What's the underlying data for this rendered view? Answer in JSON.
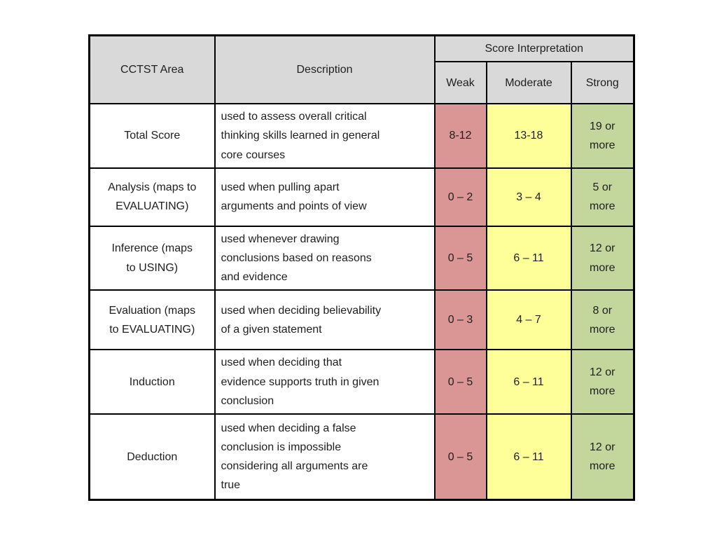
{
  "table": {
    "colors": {
      "header_bg": "#d9d9d9",
      "weak_bg": "#d99694",
      "moderate_bg": "#ffff99",
      "strong_bg": "#c3d69b",
      "border": "#000000",
      "text": "#1f1f1f"
    },
    "header": {
      "area_label": "CCTST Area",
      "description_label": "Description",
      "score_interpretation_label": "Score Interpretation",
      "levels": [
        "Weak",
        "Moderate",
        "Strong"
      ]
    },
    "rows": [
      {
        "area": "Total Score",
        "description": "used to assess overall critical\nthinking skills learned in general\ncore courses",
        "weak": "8-12",
        "moderate": "13-18",
        "strong": "19 or\nmore"
      },
      {
        "area": "Analysis (maps to\nEVALUATING)",
        "description": "used when pulling apart\narguments and points of view",
        "weak": "0 – 2",
        "moderate": "3 – 4",
        "strong": "5 or\nmore"
      },
      {
        "area": "Inference  (maps\nto USING)",
        "description": "used whenever drawing\nconclusions based on reasons\nand evidence",
        "weak": "0 – 5",
        "moderate": "6 – 11",
        "strong": "12 or\nmore"
      },
      {
        "area": "Evaluation (maps\nto EVALUATING)",
        "description": "used when deciding believability\nof a given statement",
        "weak": "0 – 3",
        "moderate": "4 – 7",
        "strong": "8 or\nmore"
      },
      {
        "area": "Induction",
        "description": "used when deciding that\nevidence supports truth in given\nconclusion",
        "weak": "0 – 5",
        "moderate": "6 – 11",
        "strong": "12 or\nmore"
      },
      {
        "area": "Deduction",
        "description": "used when deciding a false\nconclusion is impossible\nconsidering all arguments are\ntrue",
        "weak": "0 – 5",
        "moderate": "6 – 11",
        "strong": "12 or\nmore"
      }
    ]
  }
}
